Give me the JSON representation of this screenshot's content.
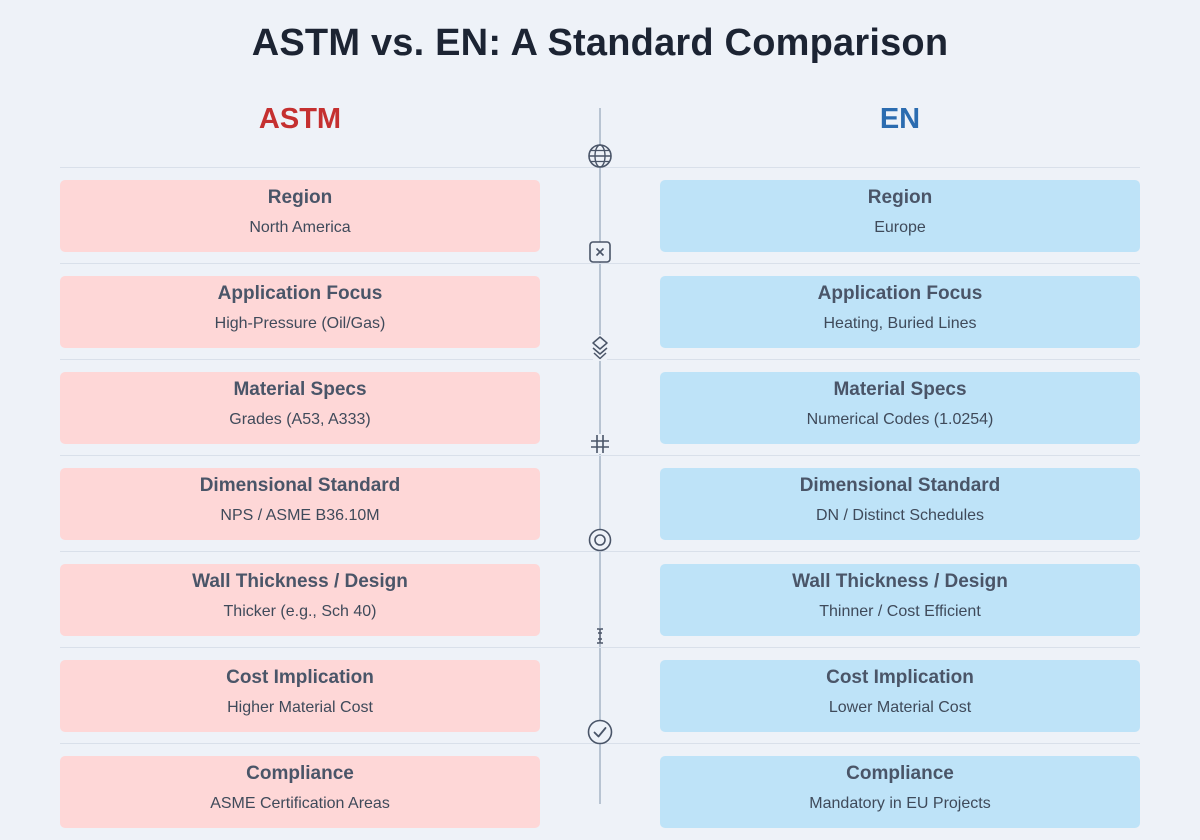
{
  "title": "ASTM vs. EN: A Standard Comparison",
  "columns": {
    "left": "ASTM",
    "right": "EN"
  },
  "colors": {
    "left_accent": "#c53030",
    "right_accent": "#2b6cb0",
    "left_card": "#fed7d7",
    "right_card": "#bee3f8"
  },
  "rows": [
    {
      "icon": "globe-icon",
      "left": {
        "label": "Region",
        "value": "North America"
      },
      "right": {
        "label": "Region",
        "value": "Europe"
      }
    },
    {
      "icon": "x-box-icon",
      "left": {
        "label": "Application Focus",
        "value": "High-Pressure (Oil/Gas)"
      },
      "right": {
        "label": "Application Focus",
        "value": "Heating, Buried Lines"
      }
    },
    {
      "icon": "layers-icon",
      "left": {
        "label": "Material Specs",
        "value": "Grades (A53, A333)"
      },
      "right": {
        "label": "Material Specs",
        "value": "Numerical Codes (1.0254)"
      }
    },
    {
      "icon": "hash-icon",
      "left": {
        "label": "Dimensional Standard",
        "value": "NPS / ASME B36.10M"
      },
      "right": {
        "label": "Dimensional Standard",
        "value": "DN / Distinct Schedules"
      }
    },
    {
      "icon": "target-icon",
      "left": {
        "label": "Wall Thickness / Design",
        "value": "Thicker (e.g., Sch 40)"
      },
      "right": {
        "label": "Wall Thickness / Design",
        "value": "Thinner / Cost Efficient"
      }
    },
    {
      "icon": "dimension-icon",
      "left": {
        "label": "Cost Implication",
        "value": "Higher Material Cost"
      },
      "right": {
        "label": "Cost Implication",
        "value": "Lower Material Cost"
      }
    },
    {
      "icon": "check-circle-icon",
      "left": {
        "label": "Compliance",
        "value": "ASME Certification Areas"
      },
      "right": {
        "label": "Compliance",
        "value": "Mandatory in EU Projects"
      }
    }
  ]
}
